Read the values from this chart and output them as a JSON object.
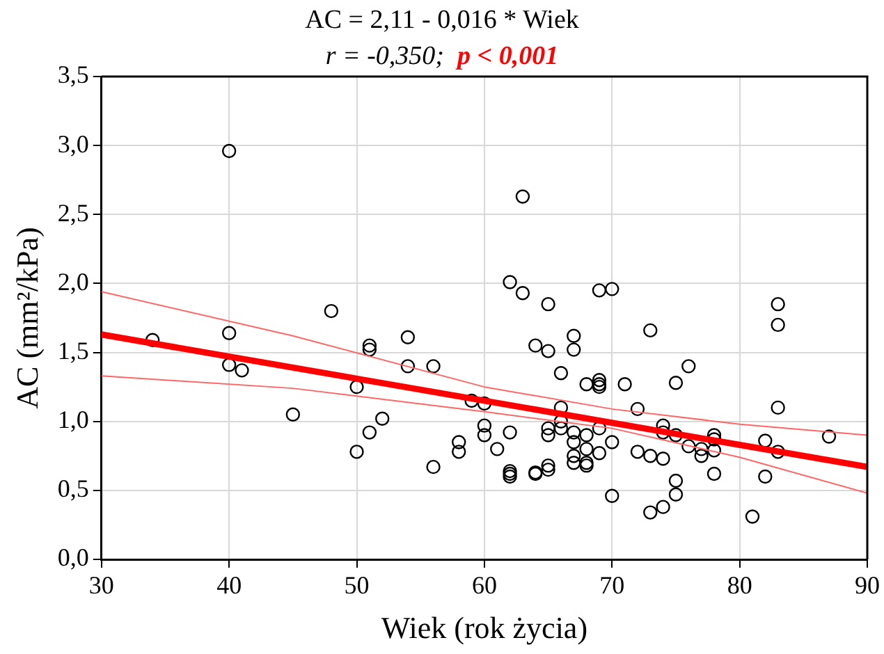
{
  "chart_data": {
    "type": "scatter",
    "title": "AC = 2,11 - 0,016 * Wiek",
    "subtitle": "r = -0,350;  p < 0,001",
    "xlabel": "Wiek (rok życia)",
    "ylabel": "AC (mm²/kPa)",
    "xlim": [
      30,
      90
    ],
    "xticks": [
      30,
      40,
      50,
      60,
      70,
      80,
      90
    ],
    "ylim": [
      0,
      3.5
    ],
    "yticks": [
      {
        "value": 0,
        "label": "0,0"
      },
      {
        "value": 0.5,
        "label": "0,5"
      },
      {
        "value": 1,
        "label": "1,0"
      },
      {
        "value": 1.5,
        "label": "1,5"
      },
      {
        "value": 2,
        "label": "2,0"
      },
      {
        "value": 2.5,
        "label": "2,5"
      },
      {
        "value": 3,
        "label": "3,0"
      },
      {
        "value": 3.5,
        "label": "3,5"
      }
    ],
    "grid": true,
    "marker": "circle",
    "series": [
      {
        "color": "#000000",
        "x": [
          34,
          40,
          40,
          40,
          41,
          45,
          48,
          50,
          50,
          51,
          51,
          51,
          52,
          54,
          54,
          56,
          56,
          58,
          58,
          59,
          60,
          60,
          60,
          61,
          62,
          62,
          62,
          62,
          62,
          63,
          63,
          64,
          64,
          64,
          65,
          65,
          65,
          65,
          65,
          65,
          66,
          66,
          66,
          66,
          67,
          67,
          67,
          67,
          67,
          67,
          68,
          68,
          68,
          68,
          68,
          69,
          69,
          69,
          69,
          69,
          69,
          70,
          70,
          70,
          71,
          72,
          72,
          73,
          73,
          73,
          74,
          74,
          74,
          74,
          75,
          75,
          75,
          75,
          76,
          76,
          77,
          77,
          78,
          78,
          78,
          78,
          81,
          82,
          82,
          83,
          83,
          83,
          83,
          87
        ],
        "values": [
          1.59,
          2.96,
          1.64,
          1.41,
          1.37,
          1.05,
          1.8,
          1.25,
          0.78,
          1.55,
          1.52,
          0.92,
          1.02,
          1.61,
          1.4,
          1.4,
          0.67,
          0.85,
          0.78,
          1.15,
          1.13,
          0.97,
          0.9,
          0.8,
          2.01,
          0.92,
          0.64,
          0.62,
          0.6,
          2.63,
          1.93,
          1.55,
          0.63,
          0.62,
          1.85,
          1.51,
          0.95,
          0.9,
          0.68,
          0.65,
          1.35,
          1.1,
          1.0,
          0.95,
          1.62,
          1.52,
          0.92,
          0.85,
          0.75,
          0.7,
          1.27,
          0.9,
          0.8,
          0.7,
          0.68,
          1.95,
          1.3,
          1.27,
          1.25,
          0.95,
          0.77,
          1.96,
          0.85,
          0.46,
          1.27,
          1.09,
          0.78,
          1.66,
          0.75,
          0.34,
          0.97,
          0.92,
          0.73,
          0.38,
          1.28,
          0.9,
          0.57,
          0.47,
          1.4,
          0.82,
          0.8,
          0.75,
          0.9,
          0.87,
          0.79,
          0.62,
          0.31,
          0.86,
          0.6,
          1.85,
          1.7,
          1.1,
          0.78,
          0.89
        ]
      },
      {
        "type": "line",
        "marker": "none",
        "color": "#ff0000",
        "x": [
          30,
          90
        ],
        "values": [
          1.63,
          0.67
        ]
      },
      {
        "type": "line",
        "marker": "none",
        "color": "#ff6666",
        "x": [
          30,
          45,
          60,
          70,
          80,
          90
        ],
        "values": [
          1.33,
          1.24,
          1.07,
          0.95,
          0.74,
          0.48
        ]
      },
      {
        "type": "line",
        "marker": "none",
        "color": "#ff6666",
        "x": [
          30,
          45,
          60,
          70,
          80,
          90
        ],
        "values": [
          1.94,
          1.62,
          1.25,
          1.09,
          0.98,
          0.9
        ]
      }
    ]
  }
}
